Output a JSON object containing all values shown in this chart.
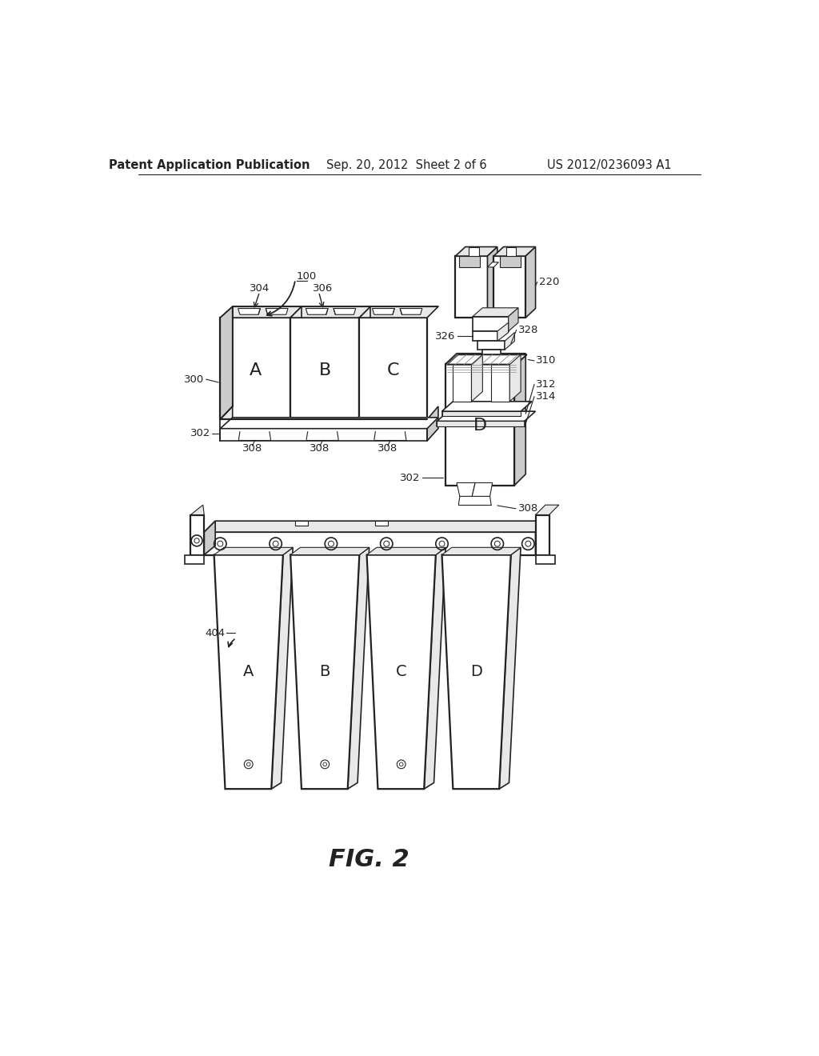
{
  "background_color": "#ffffff",
  "header_left": "Patent Application Publication",
  "header_center": "Sep. 20, 2012  Sheet 2 of 6",
  "header_right": "US 2012/0236093 A1",
  "figure_label": "FIG. 2",
  "header_font_size": 10.5,
  "figure_font_size": 22,
  "label_font_size": 9.5
}
